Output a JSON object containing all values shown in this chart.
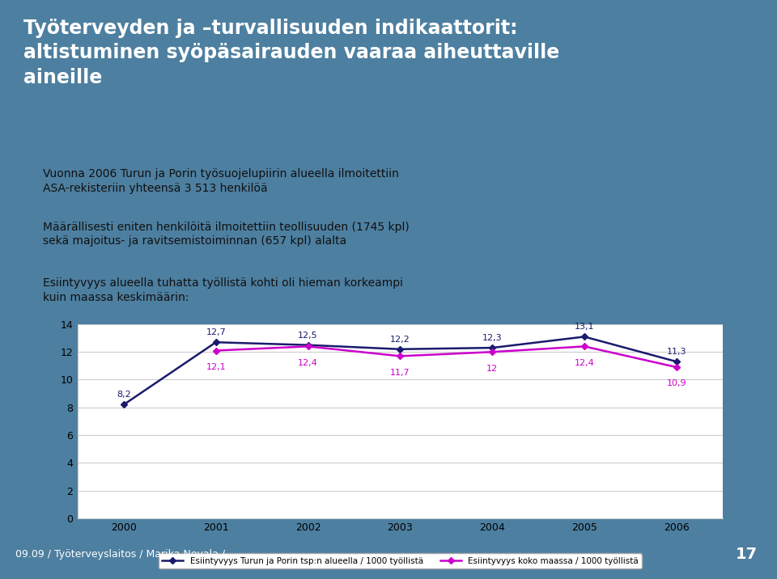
{
  "years": [
    2000,
    2001,
    2002,
    2003,
    2004,
    2005,
    2006
  ],
  "series1_name": "Esiintyvyys Turun ja Porin tsp:n alueella / 1000 työllistä",
  "series1_values": [
    8.2,
    12.7,
    12.5,
    12.2,
    12.3,
    13.1,
    11.3
  ],
  "series1_color": "#1a1a6e",
  "series1_labels": [
    "8,2",
    "12,7",
    "12,5",
    "12,2",
    "12,3",
    "13,1",
    "11,3"
  ],
  "series2_name": "Esiintyvyys koko maassa / 1000 työllistä",
  "series2_values": [
    null,
    12.1,
    12.4,
    11.7,
    12.0,
    12.4,
    10.9
  ],
  "series2_color": "#CC00CC",
  "series2_labels": [
    "",
    "12,1",
    "12,4",
    "11,7",
    "12",
    "12,4",
    "10,9"
  ],
  "ylim": [
    0,
    14
  ],
  "yticks": [
    0,
    2,
    4,
    6,
    8,
    10,
    12,
    14
  ],
  "grid_color": "#CCCCCC",
  "title_line1": "Työterveyden ja –turvallisuuden indikaattorit:",
  "title_line2": "altistuminen syöpäsairauden vaaraa aiheuttaville",
  "title_line3": "aineille",
  "bullet1": "Vuonna 2006 Turun ja Porin työsuojelupiirin alueella ilmoitettiin\nASA-rekisteriin yhteensä 3 513 henkilöä",
  "bullet2": "Määrällisesti eniten henkilöitä ilmoitettiin teollisuuden (1745 kpl)\nsekä majoitus- ja ravitsemistoiminnan (657 kpl) alalta",
  "bullet3": "Esiintyvyys alueella tuhatta työllistä kohti oli hieman korkeampi\nkuin maassa keskimäärin:",
  "footer": "09.09 / Työterveyslaitos / Marika Nevala /",
  "page_num": "17",
  "bg_color": "#4d7fa0",
  "white_bg": "#FFFFFF",
  "title_bg": "#3a6b8a"
}
